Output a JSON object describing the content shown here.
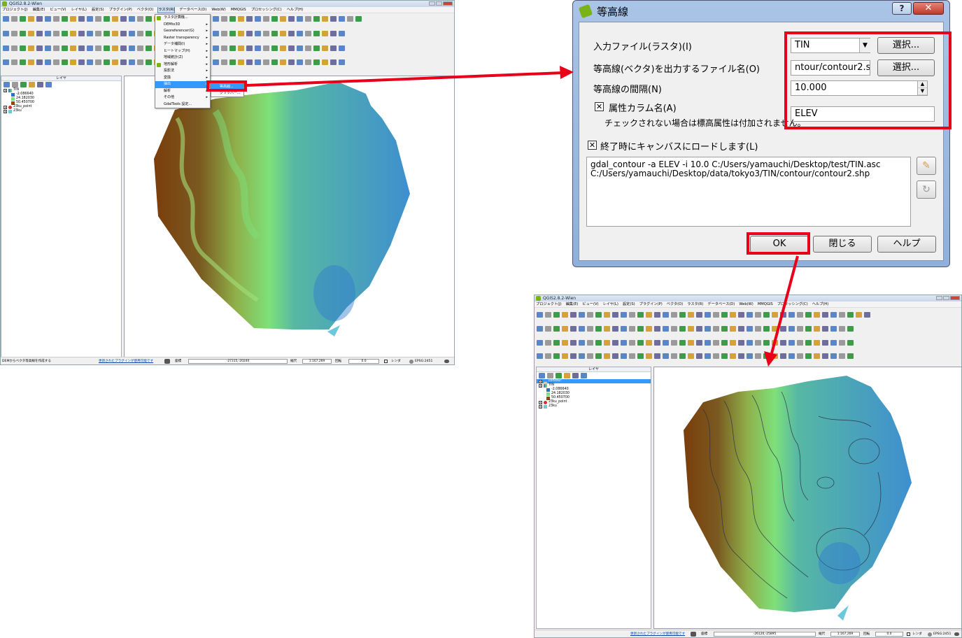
{
  "qgis_title": "QGIS2.8.2-Wien",
  "menubar": [
    "プロジェクト(J)",
    "編集(E)",
    "ビュー(V)",
    "レイヤ(L)",
    "設定(S)",
    "プラグイン(P)",
    "ベクタ(O)",
    "ラスタ(R)",
    "データベース(D)",
    "Web(W)",
    "MMQGIS",
    "プロセッシング(C)",
    "ヘルプ(H)"
  ],
  "layers_panel_title": "レイヤ",
  "layers": {
    "contour": "contour",
    "tin": "TIN",
    "legend": [
      {
        "value": "-2.086640",
        "color": "#2a6fc2"
      },
      {
        "value": "24.182030",
        "color": "#7ee07a"
      },
      {
        "value": "50.450700",
        "color": "#8c4a10"
      }
    ],
    "point": "23ku_point",
    "polygon": "23ku"
  },
  "raster_menu": {
    "items": [
      "ラスタ計算機...",
      "DEMto3D",
      "Georeferencer(G)",
      "Raster transparency",
      "データ補間(I)",
      "ヒートマップ(H)",
      "地域統計(Z)",
      "地形解析",
      "投影法",
      "変換",
      "抽出",
      "解析",
      "その他",
      "GdalTools 設定..."
    ],
    "highlighted": "抽出",
    "submenu": [
      "等高線...",
      "クリッパー..."
    ],
    "submenu_highlighted": "等高線..."
  },
  "status_left": {
    "message": "DEMからベクタ等高線を作成する",
    "plugin_link": "更新されたプラグインが使用可能です",
    "coord_label": "座標",
    "coord_value": "-27315,-20240",
    "scale_label": "縮尺",
    "scale_value": "1:167,269",
    "rotation_label": "回転",
    "rotation_value": "0.0",
    "render_label": "レンダ",
    "epsg": "EPSG:2451"
  },
  "status_right": {
    "plugin_link": "更新されたプラグインが使用可能です",
    "coord_label": "座標",
    "coord_value": "-26120,-25895",
    "scale_label": "縮尺",
    "scale_value": "1:167,269",
    "rotation_label": "回転",
    "rotation_value": "0.0",
    "render_label": "レンダ",
    "epsg": "EPSG:2451"
  },
  "dialog": {
    "title": "等高線",
    "help_symbol": "?",
    "close_symbol": "✕",
    "input_label": "入力ファイル(ラスタ)(I)",
    "input_value": "TIN",
    "output_label": "等高線(ベクタ)を出力するファイル名(O)",
    "output_value": "ntour/contour2.shp",
    "select_label": "選択...",
    "interval_label": "等高線の間隔(N)",
    "interval_value": "10.000",
    "attr_label": "属性カラム名(A)",
    "attr_value": "ELEV",
    "attr_note": "チェックされない場合は標高属性は付加されません。",
    "load_label": "終了時にキャンバスにロードします(L)",
    "command": "gdal_contour -a ELEV -i 10.0 C:/Users/yamauchi/Desktop/test/TIN.asc\nC:/Users/yamauchi/Desktop/data/tokyo3/TIN/contour/contour2.shp",
    "ok": "OK",
    "close": "閉じる",
    "help": "ヘルプ"
  },
  "colors": {
    "highlight": "#e8001a",
    "brown": "#8c4a10",
    "green": "#7ee07a",
    "blue": "#2a6fc2"
  }
}
